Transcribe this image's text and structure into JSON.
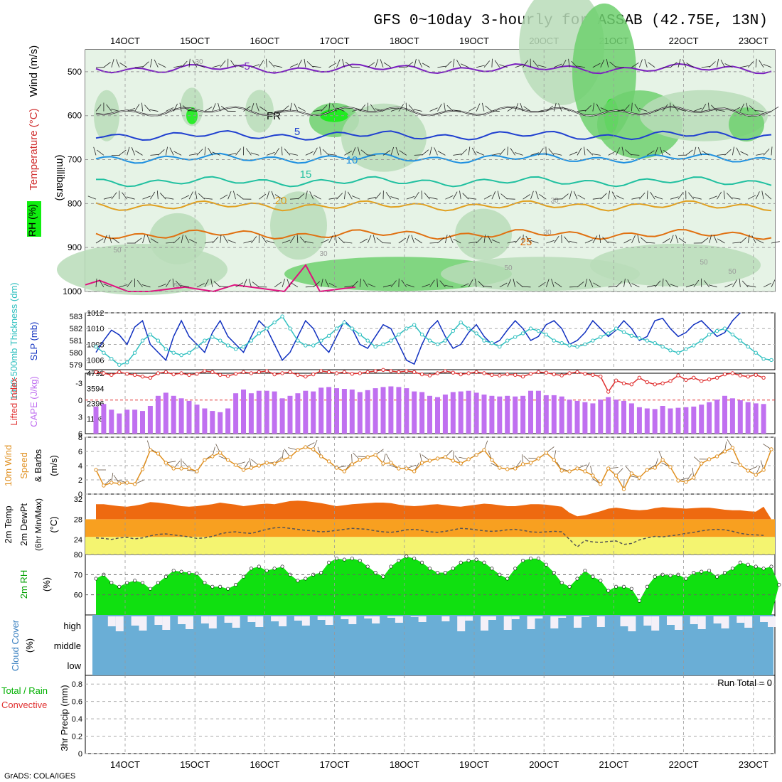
{
  "title": "GFS 0~10day 3-hourly for ASSAB (42.75E, 13N)",
  "credit": "GrADS: COLA/IGES",
  "colors": {
    "purple": "#7a1fbf",
    "fr": "#000000",
    "blue5": "#1f3fd0",
    "blue10": "#1e90e0",
    "teal15": "#20c0a0",
    "orange20": "#e0a020",
    "orange25": "#e07010",
    "magenta30": "#e0107f",
    "rh_light": "#e6f3e6",
    "rh_mid": "#b8dcb8",
    "rh_green": "#6fd06f",
    "rh_bright": "#10ee10",
    "slp": "#1030c0",
    "thick": "#30c0c0",
    "cape": "#c070f0",
    "li": "#e03030",
    "wind10": "#e09020",
    "temp_fill": "#ee6a10",
    "band1": "#f8a020",
    "band2": "#f4f470",
    "rh2m_fill": "#10e010",
    "rh2m_dark": "#00b000",
    "cloud": "#6aaed6",
    "cloud_light": "#f4f0f8"
  },
  "chart_data": [
    {
      "type": "contour",
      "name": "vertical-profile",
      "title": "Temperature / Wind / RH cross-section",
      "ylabel": "(millibars)",
      "left_labels": {
        "wind": "Wind (m/s)",
        "temp": "Temperature (°C)",
        "rh": "RH (%)"
      },
      "y_ticks": [
        "500",
        "600",
        "700",
        "800",
        "900",
        "1000"
      ],
      "ylim": [
        1000,
        450
      ],
      "isotherm_labels": [
        "-5",
        "FR",
        "5",
        "10",
        "15",
        "20",
        "25",
        "30",
        "30",
        "30",
        "30",
        "50",
        "50",
        "50",
        "50",
        "50"
      ],
      "isotherms": [
        {
          "label": "-5",
          "p": 493,
          "color": "purple"
        },
        {
          "label": "FR",
          "p": 590,
          "color": "fr"
        },
        {
          "label": "5",
          "p": 645,
          "color": "blue5"
        },
        {
          "label": "10",
          "p": 697,
          "color": "blue10"
        },
        {
          "label": "15",
          "p": 750,
          "color": "teal15"
        },
        {
          "label": "20",
          "p": 805,
          "color": "orange20"
        },
        {
          "label": "25",
          "p": 870,
          "color": "orange25"
        }
      ]
    },
    {
      "type": "line",
      "name": "slp-thickness",
      "left_labels": {
        "thick": "1000-500mb Thickness (dm)",
        "slp": "SLP (mb)"
      },
      "left_ticks": [
        "583",
        "582",
        "581",
        "580",
        "579"
      ],
      "right_ticks": [
        "1012",
        "1010",
        "1008",
        "1006"
      ],
      "series": [
        {
          "name": "SLP",
          "values": [
            1007,
            1008.5,
            1009.8,
            1009.2,
            1008,
            1010.2,
            1011,
            1008,
            1007,
            1006,
            1009,
            1011,
            1009,
            1008,
            1007,
            1009.5,
            1011,
            1009,
            1008,
            1007,
            1009,
            1011,
            1010,
            1008,
            1006,
            1007,
            1009,
            1011,
            1010,
            1008,
            1007,
            1009,
            1011,
            1010,
            1008,
            1007.5,
            1009,
            1010.5,
            1010,
            1008,
            1006,
            1005.5,
            1008,
            1010,
            1011,
            1009,
            1007.5,
            1008,
            1009.5,
            1010.5,
            1009,
            1008,
            1008.5,
            1009.8,
            1011,
            1010,
            1008.5,
            1009,
            1010.5,
            1011,
            1010,
            1008,
            1008.5,
            1009.5,
            1011,
            1010,
            1009,
            1009.8,
            1011,
            1010,
            1008.5,
            1009,
            1011,
            1011.3,
            1010,
            1009,
            1009.5,
            1010.5,
            1011,
            1010,
            1009,
            1009.5,
            1011,
            1012
          ]
        },
        {
          "name": "Thickness",
          "values": [
            580.5,
            580,
            579.5,
            579,
            579.2,
            580,
            581,
            581.5,
            581,
            580.3,
            580,
            579.8,
            580,
            580.5,
            581,
            581.3,
            581,
            580.6,
            580.3,
            580.5,
            581,
            581.6,
            582,
            582.5,
            583,
            582,
            581,
            580.6,
            580.6,
            581,
            581.4,
            582,
            582.5,
            582,
            581.5,
            581,
            580.5,
            580.7,
            581,
            581.5,
            582,
            582.3,
            581.5,
            581,
            580.7,
            581,
            581.8,
            582.5,
            582,
            581.6,
            581,
            580.8,
            580.5,
            581,
            581.3,
            581.6,
            582,
            581.8,
            581.5,
            581,
            580.8,
            580.6,
            580.5,
            580.7,
            581,
            581.3,
            581.6,
            582,
            581.7,
            581.4,
            581.2,
            581,
            580.8,
            580.5,
            580.2,
            580,
            580.3,
            580.6,
            581,
            581.5,
            581.8,
            582,
            581.5,
            581,
            580.5,
            580,
            579.5,
            579.4
          ]
        }
      ]
    },
    {
      "type": "bar",
      "name": "cape-li",
      "left_labels": {
        "li": "Lifted Index",
        "cape": "CAPE (J/kg)"
      },
      "left_ticks": [
        "-3",
        "0",
        "3",
        "6"
      ],
      "right_ticks": [
        "4792",
        "3594",
        "2396",
        "1198"
      ],
      "series": [
        {
          "name": "CAPE",
          "values": [
            2150,
            2350,
            1900,
            1600,
            1900,
            1900,
            1800,
            2200,
            3000,
            3250,
            3000,
            2800,
            2600,
            2300,
            2000,
            1800,
            1700,
            2000,
            3200,
            3500,
            3200,
            3400,
            3400,
            3350,
            2800,
            3000,
            3200,
            3400,
            3350,
            3650,
            3700,
            3600,
            3550,
            3500,
            3300,
            3450,
            3600,
            3700,
            3750,
            3700,
            3600,
            3350,
            3300,
            3000,
            2900,
            3100,
            3300,
            3350,
            3400,
            3250,
            3100,
            3000,
            2950,
            3000,
            2950,
            3000,
            3400,
            3400,
            3050,
            3050,
            2950,
            2700,
            2600,
            2500,
            2400,
            2700,
            2900,
            2700,
            2600,
            2400,
            2100,
            2000,
            1950,
            2200,
            2000,
            2050,
            2100,
            2150,
            2300,
            2500,
            2700,
            3000,
            2800,
            2650,
            2500,
            2400,
            2350
          ]
        },
        {
          "name": "LI",
          "values": [
            -5,
            -4.8,
            -4.5,
            -5,
            -4.7,
            -4.5,
            -4.2,
            -4,
            -4.8,
            -5,
            -4.6,
            -4.8,
            -4.5,
            -4.7,
            -5.2,
            -5,
            -4.5,
            -4.3,
            -4.7,
            -5,
            -4.8,
            -5,
            -5.2,
            -4.6,
            -4.8,
            -5,
            -4.5,
            -4.2,
            -4.6,
            -5.2,
            -5,
            -4.8,
            -5,
            -4.7,
            -4.8,
            -5,
            -5.2,
            -5.4,
            -5.2,
            -5,
            -5.2,
            -5,
            -4.6,
            -4.4,
            -4.8,
            -5.2,
            -4.9,
            -4.6,
            -4.8,
            -5,
            -4.8,
            -4.5,
            -4.4,
            -4.6,
            -4.5,
            -4.2,
            -4.7,
            -5,
            -4.9,
            -4.6,
            -4.4,
            -4.8,
            -5,
            -4.7,
            -4.5,
            -4.2,
            -1.5,
            -3.5,
            -3,
            -2.8,
            -4,
            -3.2,
            -2.8,
            -3,
            -3.4,
            -4.4,
            -3.6,
            -4,
            -3.4,
            -3.7,
            -4,
            -4.6,
            -4.8,
            -4.4,
            -4.2,
            -4.5,
            -4
          ]
        }
      ]
    },
    {
      "type": "line",
      "name": "wind10m",
      "left_labels": {
        "a": "10m Wind",
        "b": "Speed",
        "c": "& Barbs",
        "d": "(m/s)"
      },
      "y_ticks": [
        "8",
        "6",
        "4",
        "2",
        "0"
      ],
      "ylim": [
        0,
        8
      ],
      "values": [
        3.4,
        1.2,
        1.6,
        1.5,
        1.6,
        1.4,
        3.5,
        6.2,
        5.7,
        4.4,
        3.6,
        3.6,
        3.6,
        3.2,
        4.8,
        5.3,
        5.8,
        4.8,
        4.1,
        3.4,
        3.7,
        4,
        4.4,
        4.3,
        4.8,
        5.2,
        6.2,
        6.6,
        6.3,
        5.3,
        4.6,
        3.7,
        3.2,
        4.2,
        4.8,
        5.2,
        5.5,
        4.3,
        4.4,
        3.6,
        3.6,
        3.2,
        4.4,
        4.7,
        5,
        5.2,
        4.7,
        4.3,
        4.9,
        5.5,
        6.2,
        4.8,
        3.7,
        3.5,
        3.6,
        4.2,
        4.4,
        5,
        5.8,
        4.8,
        3.3,
        3.2,
        3.6,
        3.2,
        2.6,
        1.4,
        3.6,
        2.6,
        0.7,
        2.9,
        2.3,
        3.4,
        3.7,
        4.8,
        3.8,
        1.9,
        1.7,
        2.3,
        4.3,
        4.9,
        5.3,
        6,
        6.5,
        4.1,
        3.3,
        2.7,
        3.4,
        6.3
      ]
    },
    {
      "type": "area",
      "name": "temp2m",
      "left_labels": {
        "a": "2m Temp",
        "b": "2m DewPt",
        "c": "(6hr Min/Max)",
        "d": "(°C)"
      },
      "y_ticks": [
        "32",
        "28",
        "24"
      ],
      "ylim": [
        21,
        33
      ],
      "series": [
        {
          "name": "2m Temp",
          "values": [
            31,
            31,
            30.8,
            30.6,
            30.5,
            30.7,
            31,
            31.4,
            31.3,
            31.1,
            30.9,
            30.6,
            30.5,
            30.6,
            30.8,
            31,
            31.3,
            31.1,
            30.9,
            30.6,
            30.8,
            31,
            31.1,
            31,
            31.3,
            31.6,
            31.7,
            31.6,
            31.4,
            31.2,
            30.9,
            30.6,
            30.8,
            31,
            31.1,
            31.2,
            31.3,
            31.3,
            31.2,
            30.9,
            30.7,
            30.6,
            30.7,
            30.9,
            31,
            30.8,
            30.6,
            30.5,
            30.7,
            30.9,
            31.1,
            31,
            30.8,
            30.6,
            30.6,
            30.8,
            31,
            31,
            30.9,
            30.7,
            30.5,
            29.3,
            28.6,
            28.8,
            29.2,
            29.6,
            30.1,
            30.3,
            30.1,
            29.9,
            29.8,
            29.9,
            30.2,
            30.4,
            30.3,
            30.2,
            30.1,
            30.2,
            30.3,
            30.3,
            30.1,
            29.9,
            29.8,
            29.8,
            29.6,
            29.5,
            30.5
          ]
        },
        {
          "name": "2m DewPt",
          "values": [
            24.3,
            24.2,
            24,
            24.3,
            24.4,
            24.1,
            24.3,
            24.7,
            25,
            25.1,
            24.9,
            24.7,
            24.5,
            24.2,
            24.3,
            24.6,
            25.1,
            25.4,
            25.5,
            25.3,
            25.2,
            25.6,
            26,
            26.3,
            26.4,
            26.2,
            26,
            25.8,
            25.7,
            25.5,
            25.6,
            25.8,
            26,
            26.2,
            26.1,
            26,
            25.7,
            25.5,
            25.4,
            25.6,
            25.9,
            26,
            25.8,
            25.5,
            25.4,
            25.6,
            25.9,
            26.2,
            26.1,
            25.9,
            25.7,
            25.6,
            25.7,
            25.9,
            26,
            25.8,
            25.5,
            25.4,
            25.5,
            25.6,
            25.5,
            24,
            22.5,
            23.8,
            23.5,
            23.4,
            23.6,
            23.7,
            23,
            23.2,
            23.9,
            24.3,
            24.6,
            24.5,
            24.7,
            24.9,
            25.2,
            25.4,
            25.7,
            25.9,
            26,
            25.9,
            25.6,
            25.2,
            25,
            24.9,
            24.8
          ]
        }
      ]
    },
    {
      "type": "area",
      "name": "rh2m",
      "left_labels": {
        "a": "2m RH",
        "b": "(%)"
      },
      "y_ticks": [
        "80",
        "70",
        "60"
      ],
      "ylim": [
        50,
        80
      ],
      "values": [
        68,
        70,
        66,
        64,
        66,
        67,
        66,
        63,
        66,
        69,
        72,
        71.5,
        71,
        70.5,
        66,
        64,
        64,
        63,
        65,
        69,
        73,
        74,
        72,
        73,
        74,
        70,
        67,
        68,
        70,
        71,
        76,
        78,
        77.5,
        78,
        77,
        74,
        71,
        69,
        74,
        77,
        79,
        78,
        76,
        73,
        71,
        71,
        73,
        76,
        77,
        77.5,
        76,
        73,
        70,
        68,
        73,
        77,
        78,
        78,
        75,
        71,
        66,
        64,
        68,
        72,
        69,
        67,
        62,
        64,
        64,
        63,
        57,
        64,
        69,
        70,
        69.5,
        70,
        68,
        71,
        71.5,
        72,
        69,
        71,
        73,
        76,
        75,
        74,
        73,
        74,
        65
      ]
    },
    {
      "type": "heatmap",
      "name": "cloud-cover",
      "left_labels": {
        "a": "Cloud Cover",
        "b": "(%)"
      },
      "row_labels": [
        "high",
        "middle",
        "low"
      ]
    },
    {
      "type": "bar",
      "name": "precip",
      "left_labels": {
        "a": "Total / Rain",
        "b": "Convective",
        "c": "3hr Precip (mm)"
      },
      "y_ticks": [
        "0.8",
        "0.6",
        "0.4",
        "0.2",
        "0"
      ],
      "ylim": [
        0,
        0.9
      ],
      "run_total": "Run Total = 0",
      "values": []
    }
  ],
  "x_ticks": [
    "14OCT",
    "15OCT",
    "16OCT",
    "17OCT",
    "18OCT",
    "19OCT",
    "20OCT",
    "21OCT",
    "22OCT",
    "23OCT"
  ]
}
